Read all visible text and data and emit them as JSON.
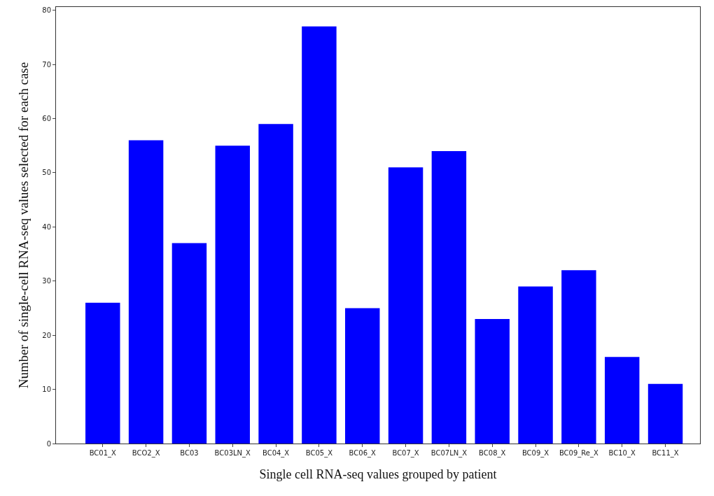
{
  "chart_data": {
    "type": "bar",
    "xlabel": "Single cell RNA-seq values grouped by patient",
    "ylabel": "Number of single-cell RNA-seq values selected for each case",
    "categories": [
      "BC01_X",
      "BCO2_X",
      "BC03",
      "BC03LN_X",
      "BC04_X",
      "BC05_X",
      "BC06_X",
      "BC07_X",
      "BC07LN_X",
      "BC08_X",
      "BC09_X",
      "BC09_Re_X",
      "BC10_X",
      "BC11_X"
    ],
    "values": [
      26,
      56,
      37,
      55,
      59,
      77,
      25,
      51,
      54,
      23,
      29,
      32,
      16,
      11
    ],
    "color": "#0000ff",
    "ylim": [
      0,
      80.6
    ],
    "yticks": [
      0,
      10,
      20,
      30,
      40,
      50,
      60,
      70,
      80
    ],
    "grid": false,
    "legend": false
  }
}
